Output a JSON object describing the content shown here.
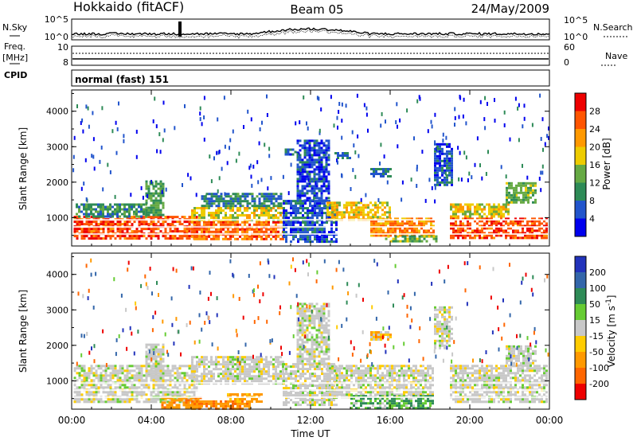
{
  "header": {
    "radar": "Hokkaido (fitACF)",
    "beam": "Beam 05",
    "date": "24/May/2009"
  },
  "strip_labels": {
    "nsky": "N.Sky",
    "freq_line1": "Freq.",
    "freq_line2": "[MHz]",
    "cpid": "CPID",
    "nsearch": "N.Search",
    "nave": "Nave",
    "cpid_text": "normal (fast) 151"
  },
  "top_strip_ticks": {
    "left_upper": "10^5",
    "left_lower": "10^0",
    "right_upper": "10^5",
    "right_lower": "10^0"
  },
  "freq_strip_ticks": {
    "left_upper": "10",
    "left_lower": "8",
    "right_upper": "60",
    "right_lower": "0"
  },
  "colors": {
    "power_scale": [
      "#0000ee",
      "#2255cc",
      "#2e8b57",
      "#66aa44",
      "#eecc00",
      "#ff9900",
      "#ff5500",
      "#ee0000"
    ],
    "velocity_scale": [
      "#2233bb",
      "#3366aa",
      "#2e8b57",
      "#66cc33",
      "#c8c8c8",
      "#ffcc00",
      "#ff9900",
      "#ff6600",
      "#ee0000"
    ],
    "ground_scatter": "#bbbbbb"
  },
  "chart_data": [
    {
      "type": "heatmap",
      "panel": "power",
      "xlabel": "Time UT",
      "ylabel": "Slant Range [km]",
      "x_ticks": [
        "00:00",
        "04:00",
        "08:00",
        "12:00",
        "16:00",
        "20:00",
        "00:00"
      ],
      "y_ticks": [
        "1000",
        "2000",
        "3000",
        "4000"
      ],
      "xlim_hours": [
        0,
        24
      ],
      "ylim_km": [
        200,
        4600
      ],
      "colorbar": {
        "label": "Power [dB]",
        "ticks": [
          "4",
          "8",
          "12",
          "16",
          "20",
          "24",
          "28"
        ],
        "range": [
          0,
          32
        ]
      },
      "regions": [
        {
          "t0": 0.1,
          "t1": 6.3,
          "r0": 400,
          "r1": 1050,
          "value": 27
        },
        {
          "t0": 0.2,
          "t1": 3.8,
          "r0": 1050,
          "r1": 1400,
          "value": 10
        },
        {
          "t0": 3.7,
          "t1": 4.6,
          "r0": 1100,
          "r1": 2050,
          "value": 12
        },
        {
          "t0": 6.0,
          "t1": 10.6,
          "r0": 400,
          "r1": 900,
          "value": 25
        },
        {
          "t0": 6.0,
          "t1": 10.6,
          "r0": 900,
          "r1": 1300,
          "value": 18
        },
        {
          "t0": 6.5,
          "t1": 10.5,
          "r0": 1300,
          "r1": 1700,
          "value": 9
        },
        {
          "t0": 10.6,
          "t1": 13.3,
          "r0": 300,
          "r1": 1500,
          "value": 6
        },
        {
          "t0": 11.3,
          "t1": 12.9,
          "r0": 1500,
          "r1": 3200,
          "value": 5
        },
        {
          "t0": 10.7,
          "t1": 11.2,
          "r0": 2750,
          "r1": 2950,
          "value": 6
        },
        {
          "t0": 13.2,
          "t1": 14.0,
          "r0": 2700,
          "r1": 2850,
          "value": 8
        },
        {
          "t0": 12.8,
          "t1": 16.0,
          "r0": 950,
          "r1": 1450,
          "value": 19
        },
        {
          "t0": 15.0,
          "t1": 18.2,
          "r0": 500,
          "r1": 1000,
          "value": 23
        },
        {
          "t0": 15.5,
          "t1": 18.3,
          "r0": 300,
          "r1": 500,
          "value": 14
        },
        {
          "t0": 15.0,
          "t1": 16.0,
          "r0": 2150,
          "r1": 2400,
          "value": 8
        },
        {
          "t0": 18.2,
          "t1": 19.1,
          "r0": 1900,
          "r1": 3100,
          "value": 6
        },
        {
          "t0": 19.0,
          "t1": 23.9,
          "r0": 400,
          "r1": 1000,
          "value": 27
        },
        {
          "t0": 19.0,
          "t1": 22.0,
          "r0": 1000,
          "r1": 1400,
          "value": 18
        },
        {
          "t0": 21.8,
          "t1": 23.3,
          "r0": 1400,
          "r1": 2000,
          "value": 13
        }
      ]
    },
    {
      "type": "heatmap",
      "panel": "velocity",
      "xlabel": "Time UT",
      "ylabel": "Slant Range [km]",
      "x_ticks": [
        "00:00",
        "04:00",
        "08:00",
        "12:00",
        "16:00",
        "20:00",
        "00:00"
      ],
      "y_ticks": [
        "1000",
        "2000",
        "3000",
        "4000"
      ],
      "xlim_hours": [
        0,
        24
      ],
      "ylim_km": [
        200,
        4600
      ],
      "colorbar": {
        "label": "Velocity [m s^-1]",
        "ticks": [
          "200",
          "100",
          "50",
          "15",
          "-15",
          "-50",
          "-100",
          "-200"
        ],
        "range": [
          -250,
          250
        ]
      },
      "regions": [
        {
          "t0": 0.1,
          "t1": 6.3,
          "r0": 400,
          "r1": 1450,
          "value": 0
        },
        {
          "t0": 3.7,
          "t1": 4.6,
          "r0": 1100,
          "r1": 2050,
          "value": 0
        },
        {
          "t0": 6.0,
          "t1": 10.6,
          "r0": 900,
          "r1": 1700,
          "value": 0
        },
        {
          "t0": 4.5,
          "t1": 6.5,
          "r0": 250,
          "r1": 550,
          "value": -60
        },
        {
          "t0": 6.0,
          "t1": 9.0,
          "r0": 200,
          "r1": 450,
          "value": -70
        },
        {
          "t0": 7.8,
          "t1": 9.5,
          "r0": 400,
          "r1": 650,
          "value": -40
        },
        {
          "t0": 10.6,
          "t1": 13.3,
          "r0": 300,
          "r1": 1500,
          "value": 0
        },
        {
          "t0": 11.3,
          "t1": 12.9,
          "r0": 1500,
          "r1": 3200,
          "value": 0
        },
        {
          "t0": 12.8,
          "t1": 18.2,
          "r0": 550,
          "r1": 1450,
          "value": 0
        },
        {
          "t0": 14.0,
          "t1": 18.2,
          "r0": 250,
          "r1": 600,
          "value": 30
        },
        {
          "t0": 15.0,
          "t1": 16.0,
          "r0": 2150,
          "r1": 2400,
          "value": -20
        },
        {
          "t0": 18.2,
          "t1": 19.1,
          "r0": 1900,
          "r1": 3100,
          "value": 0
        },
        {
          "t0": 19.0,
          "t1": 23.9,
          "r0": 400,
          "r1": 1450,
          "value": 0
        },
        {
          "t0": 21.8,
          "t1": 23.3,
          "r0": 1400,
          "r1": 2000,
          "value": 0
        }
      ]
    }
  ]
}
